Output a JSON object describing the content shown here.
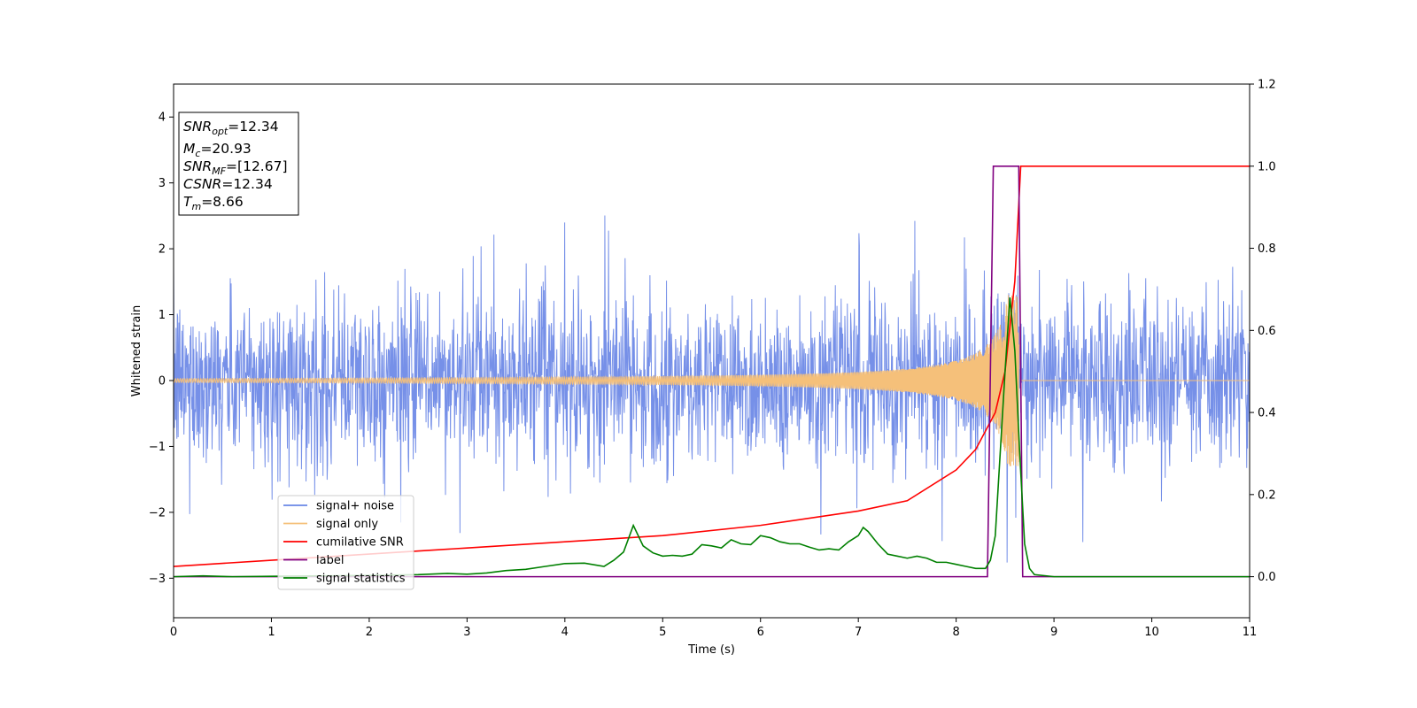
{
  "chart_data": {
    "type": "line",
    "xlabel": "Time (s)",
    "ylabel": "Whitened strain",
    "xlim": [
      0,
      11
    ],
    "ylim_left": [
      -3.6,
      4.5
    ],
    "ylim_right": [
      -0.1,
      1.2
    ],
    "x_ticks": [
      "0",
      "1",
      "2",
      "3",
      "4",
      "5",
      "6",
      "7",
      "8",
      "9",
      "10",
      "11"
    ],
    "y_ticks_left": [
      "−3",
      "−2",
      "−1",
      "0",
      "1",
      "2",
      "3",
      "4"
    ],
    "y_ticks_right": [
      "0.0",
      "0.2",
      "0.4",
      "0.6",
      "0.8",
      "1.0",
      "1.2"
    ],
    "legend_placement": "lower-left",
    "colors": {
      "signal_noise": "#6a87e6",
      "signal_only": "#f5c07a",
      "cumulative_snr": "#ff0000",
      "label": "#800080",
      "signal_statistics": "#008000"
    },
    "annotation": [
      {
        "sym": "SNR",
        "sub": "opt",
        "val": "=12.34"
      },
      {
        "sym": "M",
        "sub": "c",
        "val": "=20.93"
      },
      {
        "sym": "SNR",
        "sub": "MF",
        "val": "=[12.67]"
      },
      {
        "sym": "CSNR",
        "sub": "",
        "val": "=12.34"
      },
      {
        "sym": "T",
        "sub": "m",
        "val": "=8.66"
      }
    ],
    "series": [
      {
        "name": "signal+ noise",
        "axis": "left",
        "description": "whitened noise, amplitude about ±1.2 with spikes up to ±2.6"
      },
      {
        "name": "signal only",
        "axis": "left",
        "chirp_end": 8.66,
        "peak_amplitude": 1.3
      },
      {
        "name": "cumilative SNR",
        "axis": "right",
        "x": [
          0,
          1,
          2,
          3,
          4,
          5,
          6,
          7,
          7.5,
          8,
          8.2,
          8.4,
          8.5,
          8.6,
          8.66,
          11
        ],
        "y": [
          0.025,
          0.04,
          0.055,
          0.07,
          0.085,
          0.1,
          0.125,
          0.16,
          0.185,
          0.26,
          0.31,
          0.4,
          0.5,
          0.72,
          1.0,
          1.0
        ]
      },
      {
        "name": "label",
        "axis": "right",
        "x": [
          0,
          8.32,
          8.38,
          8.64,
          8.68,
          11
        ],
        "y": [
          0,
          0,
          1,
          1,
          0,
          0
        ]
      },
      {
        "name": "signal statistics",
        "axis": "right",
        "x": [
          0,
          0.3,
          0.6,
          1.0,
          1.5,
          2.0,
          2.5,
          2.8,
          3.0,
          3.2,
          3.4,
          3.6,
          3.8,
          4.0,
          4.2,
          4.4,
          4.5,
          4.6,
          4.7,
          4.8,
          4.9,
          5.0,
          5.1,
          5.2,
          5.3,
          5.4,
          5.5,
          5.6,
          5.7,
          5.8,
          5.9,
          6.0,
          6.1,
          6.2,
          6.3,
          6.4,
          6.5,
          6.6,
          6.7,
          6.8,
          6.9,
          7.0,
          7.05,
          7.1,
          7.2,
          7.3,
          7.4,
          7.5,
          7.6,
          7.7,
          7.8,
          7.9,
          8.0,
          8.1,
          8.2,
          8.3,
          8.35,
          8.4,
          8.45,
          8.5,
          8.55,
          8.6,
          8.65,
          8.7,
          8.75,
          8.8,
          9,
          10,
          11
        ],
        "y": [
          0,
          0.002,
          0,
          0.001,
          0.002,
          0.003,
          0.005,
          0.008,
          0.006,
          0.009,
          0.015,
          0.018,
          0.025,
          0.032,
          0.033,
          0.025,
          0.04,
          0.06,
          0.125,
          0.075,
          0.058,
          0.05,
          0.052,
          0.05,
          0.055,
          0.078,
          0.075,
          0.07,
          0.09,
          0.08,
          0.078,
          0.1,
          0.095,
          0.085,
          0.08,
          0.08,
          0.072,
          0.065,
          0.068,
          0.065,
          0.085,
          0.1,
          0.12,
          0.11,
          0.08,
          0.055,
          0.05,
          0.045,
          0.05,
          0.045,
          0.035,
          0.035,
          0.03,
          0.025,
          0.02,
          0.02,
          0.04,
          0.1,
          0.3,
          0.5,
          0.68,
          0.55,
          0.3,
          0.08,
          0.02,
          0.005,
          0,
          0,
          0
        ]
      }
    ]
  }
}
